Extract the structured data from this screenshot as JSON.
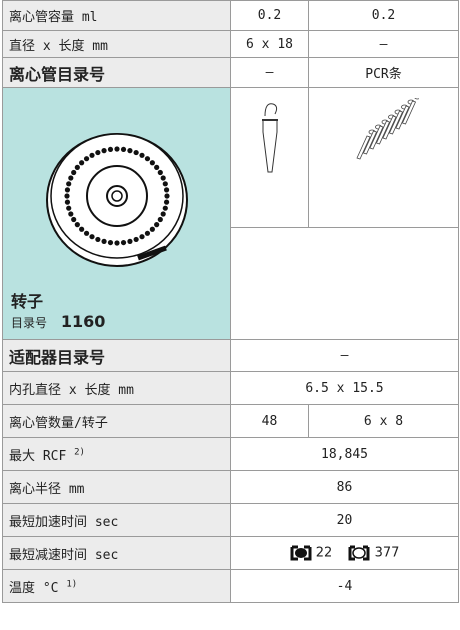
{
  "table": {
    "top_rows": [
      {
        "label": "离心管容量 ml",
        "cells": [
          "0.2",
          "0.2"
        ]
      },
      {
        "label": "直径 x 长度 mm",
        "cells": [
          "6 x 18",
          "–"
        ]
      },
      {
        "label": "离心管目录号",
        "cells": [
          "–",
          "PCR条"
        ]
      }
    ],
    "rotor": {
      "title": "转子",
      "catalog_label": "目录号",
      "catalog": "1160"
    },
    "bottom_rows": [
      {
        "label": "适配器目录号",
        "value": "–"
      },
      {
        "label": "内孔直径 x 长度 mm",
        "value": "6.5 x 15.5"
      },
      {
        "label": "离心管数量/转子",
        "cells": [
          "48",
          "6 x 8"
        ]
      },
      {
        "label": "最大 RCF",
        "note": "2)",
        "value": "18,845"
      },
      {
        "label": "离心半径 mm",
        "value": "86"
      },
      {
        "label": "最短加速时间 sec",
        "value": "20"
      },
      {
        "label": "最短减速时间 sec",
        "values": [
          "22",
          "377"
        ]
      },
      {
        "label": "温度 °C",
        "note": "1)",
        "value": "-4"
      }
    ]
  }
}
